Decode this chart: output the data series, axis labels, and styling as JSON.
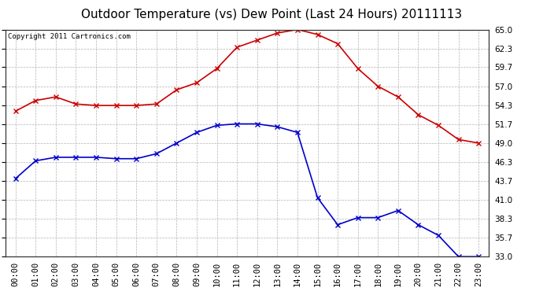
{
  "title": "Outdoor Temperature (vs) Dew Point (Last 24 Hours) 20111113",
  "copyright": "Copyright 2011 Cartronics.com",
  "hours": [
    "00:00",
    "01:00",
    "02:00",
    "03:00",
    "04:00",
    "05:00",
    "06:00",
    "07:00",
    "08:00",
    "09:00",
    "10:00",
    "11:00",
    "12:00",
    "13:00",
    "14:00",
    "15:00",
    "16:00",
    "17:00",
    "18:00",
    "19:00",
    "20:00",
    "21:00",
    "22:00",
    "23:00"
  ],
  "temp": [
    53.5,
    55.0,
    55.5,
    54.5,
    54.3,
    54.3,
    54.3,
    54.5,
    56.5,
    57.5,
    59.5,
    62.5,
    63.5,
    64.5,
    65.0,
    64.3,
    63.0,
    59.5,
    57.0,
    55.5,
    53.0,
    51.5,
    49.5,
    49.0
  ],
  "dewpoint": [
    44.0,
    46.5,
    47.0,
    47.0,
    47.0,
    46.8,
    46.8,
    47.5,
    49.0,
    50.5,
    51.5,
    51.7,
    51.7,
    51.3,
    50.5,
    41.3,
    37.5,
    38.5,
    38.5,
    39.5,
    37.5,
    36.0,
    33.0,
    33.0
  ],
  "temp_color": "#cc0000",
  "dew_color": "#0000cc",
  "bg_color": "#ffffff",
  "plot_bg_color": "#ffffff",
  "grid_color": "#aaaaaa",
  "ymin": 33.0,
  "ymax": 65.0,
  "yticks": [
    33.0,
    35.7,
    38.3,
    41.0,
    43.7,
    46.3,
    49.0,
    51.7,
    54.3,
    57.0,
    59.7,
    62.3,
    65.0
  ],
  "title_fontsize": 11,
  "copyright_fontsize": 6.5,
  "tick_fontsize": 7.5,
  "marker": "x",
  "markersize": 4,
  "linewidth": 1.2
}
